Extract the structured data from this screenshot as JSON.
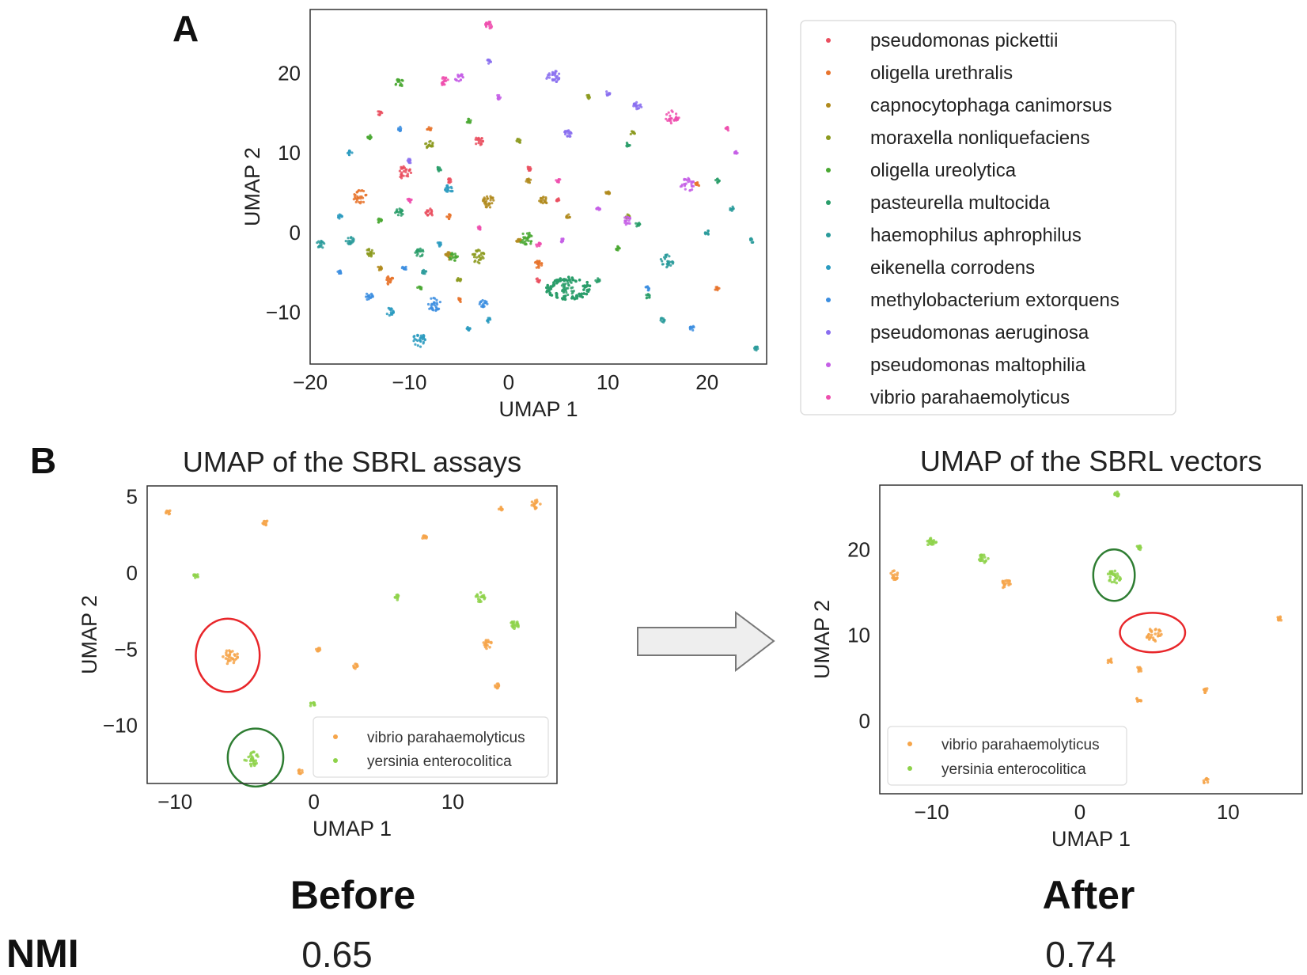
{
  "panel_labels": {
    "a": "A",
    "b": "B"
  },
  "colors": {
    "frame": "#333333",
    "legend_border": "#dddddd",
    "arrow_fill": "#eeeeee",
    "arrow_stroke": "#777777",
    "red_circle": "#e8262a",
    "green_circle": "#2e7d32"
  },
  "chart_data": [
    {
      "id": "panel-a",
      "type": "scatter",
      "title": "",
      "xlabel": "UMAP 1",
      "ylabel": "UMAP 2",
      "xlim": [
        -20,
        26
      ],
      "ylim": [
        -16.5,
        28
      ],
      "xticks": [
        -20,
        -10,
        0,
        10,
        20
      ],
      "yticks": [
        -10,
        0,
        10,
        20
      ],
      "xtick_labels": [
        "−20",
        "−10",
        "0",
        "10",
        "20"
      ],
      "ytick_labels": [
        "−10",
        "0",
        "10",
        "20"
      ],
      "legend_position": "right, outside",
      "series": [
        {
          "name": "pseudomonas pickettii",
          "color": "#ea4f5f",
          "points": [
            [
              -10.5,
              7.5
            ],
            [
              -8,
              2.5
            ],
            [
              -3,
              11.5
            ],
            [
              2,
              8
            ],
            [
              -13,
              15
            ],
            [
              5,
              4
            ],
            [
              -6,
              6.5
            ],
            [
              3,
              -6
            ]
          ]
        },
        {
          "name": "oligella urethralis",
          "color": "#e8742d",
          "points": [
            [
              -15,
              4.5
            ],
            [
              -12,
              -6
            ],
            [
              3,
              -4
            ],
            [
              -5,
              -8.5
            ],
            [
              -8,
              13
            ],
            [
              19,
              6
            ],
            [
              21,
              -7
            ],
            [
              -6,
              2
            ]
          ]
        },
        {
          "name": "capnocytophaga canimorsus",
          "color": "#b08a1c",
          "points": [
            [
              -2,
              3.8
            ],
            [
              3.5,
              4
            ],
            [
              -6,
              -3
            ],
            [
              6,
              2
            ],
            [
              1,
              -1
            ],
            [
              -13,
              -4.5
            ],
            [
              2,
              6.5
            ],
            [
              10,
              5
            ]
          ]
        },
        {
          "name": "moraxella nonliquefaciens",
          "color": "#8c9a1f",
          "points": [
            [
              -3,
              -3
            ],
            [
              -8,
              11
            ],
            [
              -14,
              -2.5
            ],
            [
              1,
              11.5
            ],
            [
              12,
              2
            ],
            [
              8,
              17
            ],
            [
              -5,
              -6
            ],
            [
              12.5,
              12.5
            ]
          ]
        },
        {
          "name": "oligella ureolytica",
          "color": "#4aa832",
          "points": [
            [
              1.8,
              -0.8
            ],
            [
              -11,
              18.8
            ],
            [
              -5.5,
              -3
            ],
            [
              -13,
              1.5
            ],
            [
              -4,
              14
            ],
            [
              -9,
              -7
            ],
            [
              11,
              -2
            ],
            [
              -14,
              12
            ]
          ]
        },
        {
          "name": "pasteurella multocida",
          "color": "#2a9d6a",
          "points": [
            [
              6,
              -7
            ],
            [
              -11,
              2.5
            ],
            [
              -9,
              -2.5
            ],
            [
              12,
              11
            ],
            [
              21,
              6.5
            ],
            [
              9,
              -6
            ],
            [
              -7,
              8
            ],
            [
              14,
              -8
            ],
            [
              13,
              1
            ]
          ]
        },
        {
          "name": "haemophilus aphrophilus",
          "color": "#2a9b9b",
          "points": [
            [
              16,
              -3.5
            ],
            [
              -19,
              -1.5
            ],
            [
              -16,
              -1
            ],
            [
              15.5,
              -11
            ],
            [
              22.5,
              3
            ],
            [
              25,
              -14.5
            ],
            [
              -8.5,
              -5
            ],
            [
              24.5,
              -1
            ],
            [
              20,
              0
            ]
          ]
        },
        {
          "name": "eikenella corrodens",
          "color": "#2b9bc0",
          "points": [
            [
              -9,
              -13.5
            ],
            [
              -12,
              -10
            ],
            [
              -6,
              5.5
            ],
            [
              -7,
              -1.5
            ],
            [
              -4,
              -12
            ],
            [
              -2,
              -11
            ],
            [
              -17,
              2
            ],
            [
              -16,
              10
            ]
          ]
        },
        {
          "name": "methylobacterium extorquens",
          "color": "#3c8ee0",
          "points": [
            [
              -7.5,
              -9
            ],
            [
              -2.5,
              -9
            ],
            [
              -14,
              -8
            ],
            [
              -10.5,
              -4.5
            ],
            [
              -17,
              -5
            ],
            [
              14,
              -7
            ],
            [
              18.5,
              -12
            ],
            [
              -11,
              13
            ]
          ]
        },
        {
          "name": "pseudomonas aeruginosa",
          "color": "#8a6ef0",
          "points": [
            [
              4.5,
              19.5
            ],
            [
              6,
              12.5
            ],
            [
              13,
              16
            ],
            [
              -2,
              21.5
            ],
            [
              10,
              17.5
            ],
            [
              -10,
              9
            ]
          ]
        },
        {
          "name": "pseudomonas maltophilia",
          "color": "#c55fe6",
          "points": [
            [
              18,
              6
            ],
            [
              12,
              1.5
            ],
            [
              -5,
              19.5
            ],
            [
              -1,
              17
            ],
            [
              9,
              3
            ],
            [
              23,
              10
            ],
            [
              5.5,
              -1
            ]
          ]
        },
        {
          "name": "vibrio parahaemolyticus",
          "color": "#ee4fae",
          "points": [
            [
              16.5,
              14.5
            ],
            [
              -2,
              26
            ],
            [
              -6.5,
              19
            ],
            [
              3,
              -1.5
            ],
            [
              -3,
              0.5
            ],
            [
              22,
              13
            ],
            [
              -10,
              4
            ],
            [
              5,
              6.5
            ]
          ]
        }
      ]
    },
    {
      "id": "panel-b-before",
      "type": "scatter",
      "title": "UMAP of the SBRL assays",
      "xlabel": "UMAP 1",
      "ylabel": "UMAP 2",
      "xlim": [
        -12,
        17.5
      ],
      "ylim": [
        -13.8,
        5.7
      ],
      "xticks": [
        -10,
        0,
        10
      ],
      "yticks": [
        5,
        0,
        -5,
        -10
      ],
      "xtick_labels": [
        "−10",
        "0",
        "10"
      ],
      "ytick_labels": [
        "5",
        "0",
        "−5",
        "−10"
      ],
      "legend_position": "lower-right",
      "series": [
        {
          "name": "vibrio parahaemolyticus",
          "color": "#f6a54a",
          "points": [
            [
              -6,
              -5.5
            ],
            [
              12.5,
              -4.7
            ],
            [
              16,
              4.5
            ],
            [
              13.5,
              4.2
            ],
            [
              -10.5,
              4
            ],
            [
              -3.5,
              3.3
            ],
            [
              8,
              2.3
            ],
            [
              0.3,
              -5
            ],
            [
              3,
              -6.1
            ],
            [
              13.2,
              -7.4
            ],
            [
              -1,
              -13
            ]
          ]
        },
        {
          "name": "yersinia enterocolitica",
          "color": "#8ed24a",
          "points": [
            [
              -4.5,
              -12.2
            ],
            [
              12,
              -1.6
            ],
            [
              14.5,
              -3.4
            ],
            [
              6,
              -1.6
            ],
            [
              -0.1,
              -8.6
            ],
            [
              -8.5,
              -0.2
            ]
          ]
        }
      ],
      "highlights": [
        {
          "label": "vibrio parahaemolyticus cluster",
          "color": "red",
          "center": [
            -6.2,
            -5.4
          ],
          "rx": 2.3,
          "ry": 2.4
        },
        {
          "label": "yersinia enterocolitica cluster",
          "color": "green",
          "center": [
            -4.2,
            -12.1
          ],
          "rx": 2.0,
          "ry": 1.9
        }
      ]
    },
    {
      "id": "panel-b-after",
      "type": "scatter",
      "title": "UMAP of the SBRL vectors",
      "xlabel": "UMAP 1",
      "ylabel": "UMAP 2",
      "xlim": [
        -13.5,
        15
      ],
      "ylim": [
        -8.5,
        27.5
      ],
      "xticks": [
        -10,
        0,
        10
      ],
      "yticks": [
        0,
        10,
        20
      ],
      "xtick_labels": [
        "−10",
        "0",
        "10"
      ],
      "ytick_labels": [
        "0",
        "10",
        "20"
      ],
      "legend_position": "lower-left",
      "series": [
        {
          "name": "vibrio parahaemolyticus",
          "color": "#f6a54a",
          "points": [
            [
              5,
              10
            ],
            [
              -5,
              16
            ],
            [
              -12.5,
              17
            ],
            [
              2,
              7
            ],
            [
              4,
              6
            ],
            [
              8.5,
              3.5
            ],
            [
              13.5,
              12
            ],
            [
              4,
              2.5
            ],
            [
              8.5,
              -7
            ]
          ]
        },
        {
          "name": "yersinia enterocolitica",
          "color": "#8ed24a",
          "points": [
            [
              2.3,
              16.9
            ],
            [
              -6.5,
              19
            ],
            [
              -10,
              20.8
            ],
            [
              2.5,
              26.5
            ],
            [
              4,
              20.2
            ]
          ]
        }
      ],
      "highlights": [
        {
          "label": "yersinia enterocolitica cluster",
          "color": "green",
          "center": [
            2.3,
            17.0
          ],
          "rx": 1.4,
          "ry": 3.0
        },
        {
          "label": "vibrio parahaemolyticus cluster",
          "color": "red",
          "center": [
            4.9,
            10.3
          ],
          "rx": 2.2,
          "ry": 2.3
        }
      ]
    }
  ],
  "captions": {
    "before": "Before",
    "after": "After",
    "nmi_label": "NMI",
    "nmi_before": "0.65",
    "nmi_after": "0.74"
  }
}
